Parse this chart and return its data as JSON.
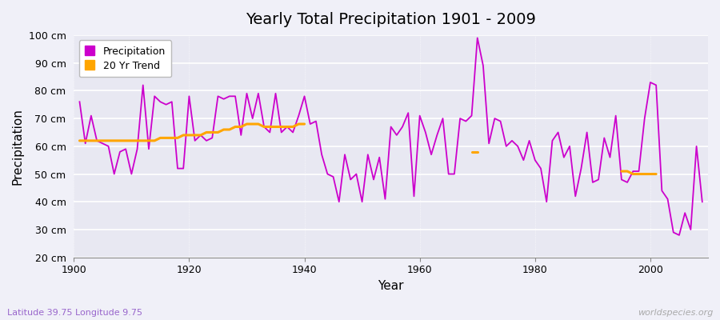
{
  "title": "Yearly Total Precipitation 1901 - 2009",
  "xlabel": "Year",
  "ylabel": "Precipitation",
  "subtitle": "Latitude 39.75 Longitude 9.75",
  "watermark": "worldspecies.org",
  "bg_color": "#f0f0f8",
  "plot_bg_color": "#e8e8f2",
  "precip_color": "#cc00cc",
  "trend_color": "#ffa500",
  "ylim": [
    20,
    100
  ],
  "yticks": [
    20,
    30,
    40,
    50,
    60,
    70,
    80,
    90,
    100
  ],
  "ytick_labels": [
    "20 cm",
    "30 cm",
    "40 cm",
    "50 cm",
    "60 cm",
    "70 cm",
    "80 cm",
    "90 cm",
    "100 cm"
  ],
  "years": [
    1901,
    1902,
    1903,
    1904,
    1905,
    1906,
    1907,
    1908,
    1909,
    1910,
    1911,
    1912,
    1913,
    1914,
    1915,
    1916,
    1917,
    1918,
    1919,
    1920,
    1921,
    1922,
    1923,
    1924,
    1925,
    1926,
    1927,
    1928,
    1929,
    1930,
    1931,
    1932,
    1933,
    1934,
    1935,
    1936,
    1937,
    1938,
    1939,
    1940,
    1941,
    1942,
    1943,
    1944,
    1945,
    1946,
    1947,
    1948,
    1949,
    1950,
    1951,
    1952,
    1953,
    1954,
    1955,
    1956,
    1957,
    1958,
    1959,
    1960,
    1961,
    1962,
    1963,
    1964,
    1965,
    1966,
    1967,
    1968,
    1969,
    1970,
    1971,
    1972,
    1973,
    1974,
    1975,
    1976,
    1977,
    1978,
    1979,
    1980,
    1981,
    1982,
    1983,
    1984,
    1985,
    1986,
    1987,
    1988,
    1989,
    1990,
    1991,
    1992,
    1993,
    1994,
    1995,
    1996,
    1997,
    1998,
    1999,
    2000,
    2001,
    2002,
    2003,
    2004,
    2005,
    2006,
    2007,
    2008,
    2009
  ],
  "precip": [
    76,
    61,
    71,
    62,
    61,
    60,
    50,
    58,
    59,
    50,
    59,
    82,
    59,
    78,
    76,
    75,
    76,
    52,
    52,
    78,
    62,
    64,
    62,
    63,
    78,
    77,
    78,
    78,
    64,
    79,
    70,
    79,
    67,
    65,
    79,
    65,
    67,
    65,
    71,
    78,
    68,
    69,
    57,
    50,
    49,
    40,
    57,
    48,
    50,
    40,
    57,
    48,
    56,
    41,
    67,
    64,
    67,
    72,
    42,
    71,
    65,
    57,
    64,
    70,
    50,
    50,
    70,
    69,
    71,
    99,
    89,
    61,
    70,
    69,
    60,
    62,
    60,
    55,
    62,
    55,
    52,
    40,
    62,
    65,
    56,
    60,
    42,
    52,
    65,
    47,
    48,
    63,
    56,
    71,
    48,
    47,
    51,
    51,
    70,
    83,
    82,
    44,
    41,
    29,
    28,
    36,
    30,
    60,
    40
  ],
  "trend_segments": [
    {
      "years": [
        1901,
        1902,
        1903,
        1904,
        1905,
        1906,
        1907,
        1908,
        1909,
        1910,
        1911,
        1912,
        1913,
        1914,
        1915,
        1916,
        1917,
        1918,
        1919,
        1920,
        1921,
        1922,
        1923,
        1924,
        1925,
        1926,
        1927,
        1928,
        1929,
        1930,
        1931,
        1932,
        1933,
        1934,
        1935,
        1936,
        1937,
        1938,
        1939,
        1940
      ],
      "values": [
        62,
        62,
        62,
        62,
        62,
        62,
        62,
        62,
        62,
        62,
        62,
        62,
        62,
        62,
        63,
        63,
        63,
        63,
        64,
        64,
        64,
        64,
        65,
        65,
        65,
        66,
        66,
        67,
        67,
        68,
        68,
        68,
        67,
        67,
        67,
        67,
        67,
        67,
        68,
        68
      ]
    },
    {
      "years": [
        1969,
        1970
      ],
      "values": [
        58,
        58
      ]
    },
    {
      "years": [
        1995,
        1996,
        1997,
        1998,
        1999,
        2000,
        2001
      ],
      "values": [
        51,
        51,
        50,
        50,
        50,
        50,
        50
      ]
    }
  ]
}
